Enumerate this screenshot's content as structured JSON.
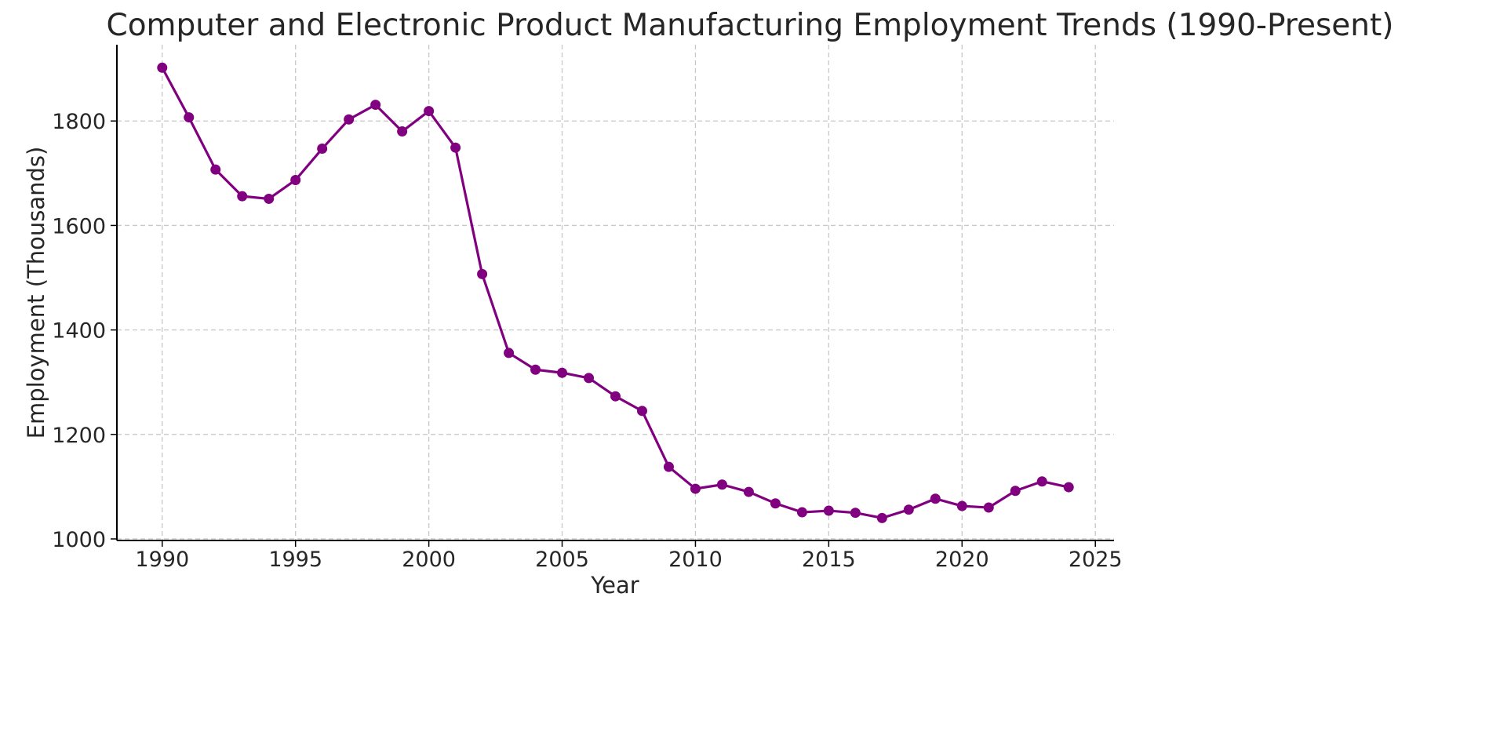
{
  "chart_data": {
    "type": "line",
    "title": "Computer and Electronic Product Manufacturing Employment Trends (1990-Present)",
    "xlabel": "Year",
    "ylabel": "Employment (Thousands)",
    "xlim": [
      1988.3,
      2025.7
    ],
    "ylim": [
      997,
      1946
    ],
    "xticks": [
      1990,
      1995,
      2000,
      2005,
      2010,
      2015,
      2020,
      2025
    ],
    "yticks": [
      1000,
      1200,
      1400,
      1600,
      1800
    ],
    "grid": true,
    "color": "#800080",
    "x": [
      1990,
      1991,
      1992,
      1993,
      1994,
      1995,
      1996,
      1997,
      1998,
      1999,
      2000,
      2001,
      2002,
      2003,
      2004,
      2005,
      2006,
      2007,
      2008,
      2009,
      2010,
      2011,
      2012,
      2013,
      2014,
      2015,
      2016,
      2017,
      2018,
      2019,
      2020,
      2021,
      2022,
      2023,
      2024
    ],
    "y": [
      1902,
      1807,
      1707,
      1656,
      1651,
      1687,
      1747,
      1803,
      1831,
      1780,
      1819,
      1749,
      1507,
      1356,
      1324,
      1318,
      1308,
      1273,
      1245,
      1138,
      1096,
      1104,
      1090,
      1068,
      1051,
      1054,
      1050,
      1040,
      1056,
      1077,
      1063,
      1060,
      1092,
      1110,
      1099
    ]
  }
}
